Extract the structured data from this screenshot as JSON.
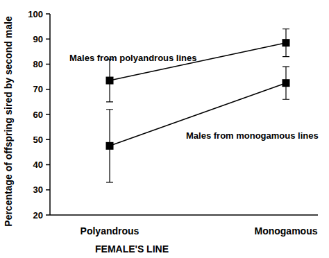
{
  "chart_data": {
    "type": "line",
    "x_label": "FEMALE'S LINE",
    "y_label": "Percentage of offspring sired by second male",
    "categories": [
      "Polyandrous",
      "Monogamous"
    ],
    "series": [
      {
        "name": "Males from polyandrous lines",
        "color": "#000000",
        "marker": "square",
        "line_style": "solid",
        "values": [
          73.5,
          88.5
        ],
        "errors": [
          8.5,
          5.5
        ]
      },
      {
        "name": "Males from monogamous lines",
        "color": "#000000",
        "marker": "square",
        "line_style": "solid",
        "values": [
          47.5,
          72.5
        ],
        "errors": [
          14.5,
          6.5
        ]
      }
    ],
    "ylim": [
      20,
      100
    ],
    "yticks": [
      20,
      30,
      40,
      50,
      60,
      70,
      80,
      90,
      100
    ],
    "grid": false
  }
}
